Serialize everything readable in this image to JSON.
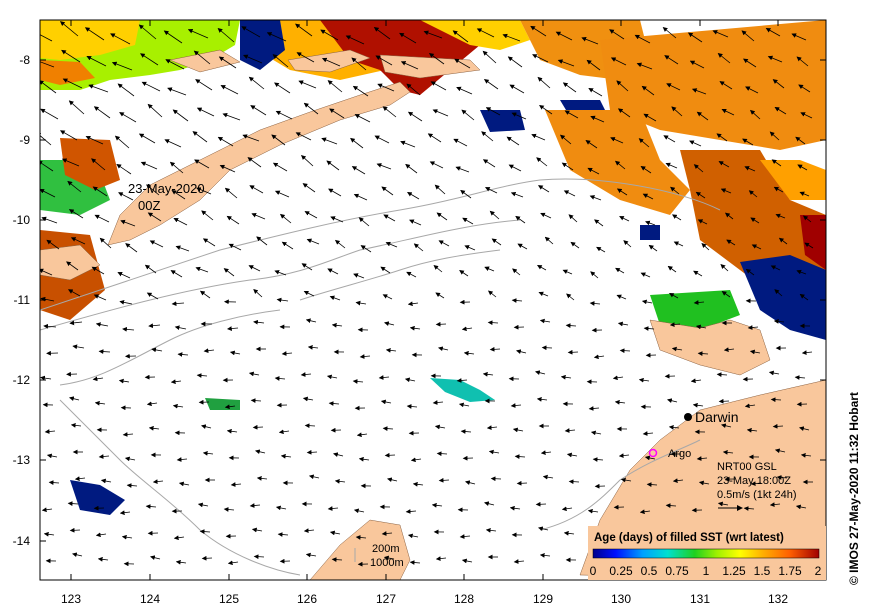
{
  "map": {
    "lon_ticks": [
      "123",
      "124",
      "125",
      "126",
      "127",
      "128",
      "129",
      "130",
      "131",
      "132"
    ],
    "lat_ticks": [
      "-8",
      "-9",
      "-10",
      "-11",
      "-12",
      "-13",
      "-14"
    ],
    "satellite_pass_label_date": "23-May-2020",
    "satellite_pass_label_time": "00Z",
    "place_darwin": "Darwin",
    "place_argo": "Argo",
    "current_info_line1": "NRT00 GSL",
    "current_info_line2": "23-May 18:00Z",
    "current_info_line3": "0.5m/s (1kt 24h)",
    "contour_200m": "200m",
    "contour_1000m": "1000m",
    "colorbar_title": "Age (days) of filled SST (wrt latest)",
    "colorbar_ticks": [
      "0",
      "0.25",
      "0.5",
      "0.75",
      "1",
      "1.25",
      "1.5",
      "1.75",
      "2"
    ],
    "credit": "© IMOS 27-May-2020 11:32 Hobart",
    "colors": {
      "land": "#f9c79c",
      "contour": "#a8a8a8",
      "argo_marker": "#ff00ff",
      "darwin_marker": "#000000"
    }
  }
}
